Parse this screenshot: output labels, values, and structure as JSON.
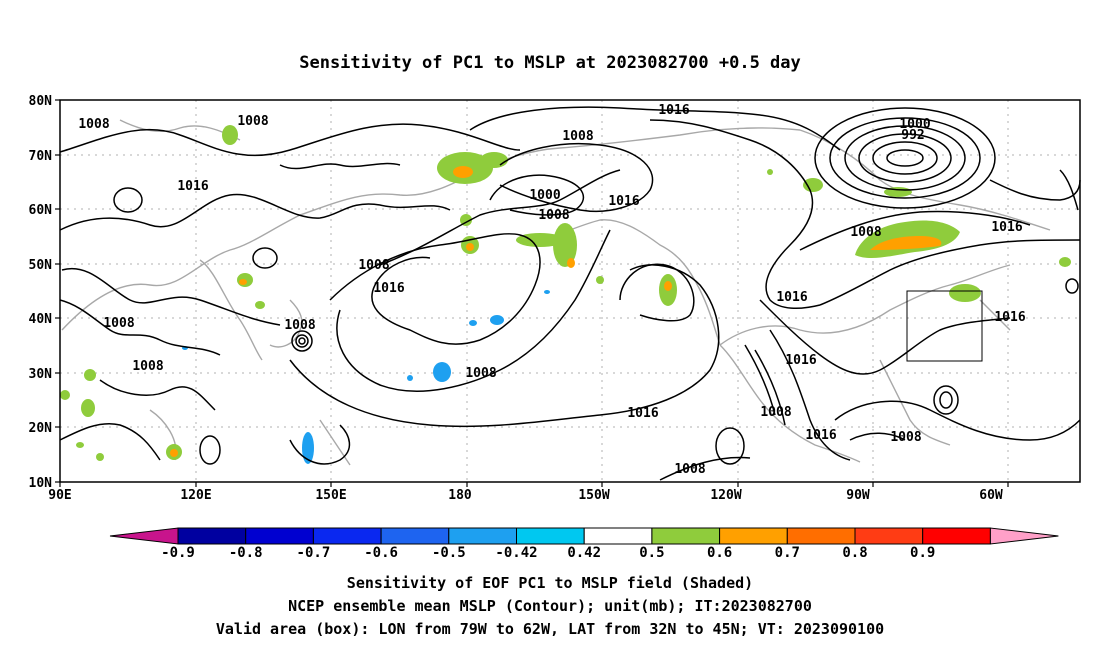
{
  "title": "Sensitivity of PC1 to MSLP at 2023082700 +0.5 day",
  "map": {
    "lat_labels": [
      "80N",
      "70N",
      "60N",
      "50N",
      "40N",
      "30N",
      "20N",
      "10N"
    ],
    "lon_labels": [
      "90E",
      "120E",
      "150E",
      "180",
      "150W",
      "120W",
      "90W",
      "60W"
    ],
    "contour_labels": [
      "1008",
      "1008",
      "1016",
      "1008",
      "1016",
      "1008",
      "1008",
      "1008",
      "1008",
      "1016",
      "1008",
      "1000",
      "1008",
      "1016",
      "1016",
      "1016",
      "1016",
      "1016",
      "1000",
      "992",
      "1008",
      "1016",
      "1016",
      "1016",
      "1008",
      "1016",
      "1008",
      "1008"
    ],
    "grid": true,
    "valid_box": {
      "lon_from": "79W",
      "lon_to": "62W",
      "lat_from": "32N",
      "lat_to": "45N"
    }
  },
  "colorbar": {
    "labels": [
      "-0.9",
      "-0.8",
      "-0.7",
      "-0.6",
      "-0.5",
      "-0.42",
      "0.42",
      "0.5",
      "0.6",
      "0.7",
      "0.8",
      "0.9"
    ],
    "colors": [
      "#0000a0",
      "#0000d0",
      "#0a28f0",
      "#1e64f0",
      "#1ea0f0",
      "#00c8f0",
      "#ffffff",
      "#8fcc3c",
      "#ffa000",
      "#ff6e00",
      "#ff3c14",
      "#ff0000"
    ],
    "low_end_color": "#c8148c",
    "high_end_color": "#ffa0c8"
  },
  "footer": {
    "line1": "Sensitivity of EOF PC1 to MSLP field (Shaded)",
    "line2": "NCEP ensemble mean MSLP (Contour); unit(mb); IT:2023082700",
    "line3": "Valid area (box): LON from 79W to 62W, LAT from 32N to 45N; VT: 2023090100"
  }
}
